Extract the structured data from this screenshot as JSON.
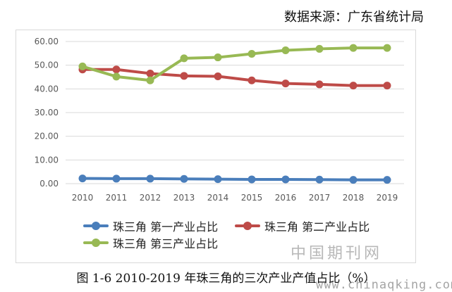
{
  "source_note": "数据来源：广东省统计局",
  "caption": "图 1-6 2010-2019 年珠三角的三次产业产值占比（%）",
  "watermark_cn": "中国期刊网",
  "watermark_url": "www.chinaqking.com",
  "chart_data": {
    "type": "line",
    "categories": [
      "2010",
      "2011",
      "2012",
      "2013",
      "2014",
      "2015",
      "2016",
      "2017",
      "2018",
      "2019"
    ],
    "ylim": [
      0,
      60
    ],
    "yticks": [
      "0.00",
      "10.00",
      "20.00",
      "30.00",
      "40.00",
      "50.00",
      "60.00"
    ],
    "grid": true,
    "legend_position": "bottom",
    "series": [
      {
        "name": "珠三角 第一产业占比",
        "color": "#4a7ebb",
        "values": [
          2.2,
          2.1,
          2.1,
          2.0,
          1.9,
          1.8,
          1.8,
          1.7,
          1.6,
          1.6
        ]
      },
      {
        "name": "珠三角 第二产业占比",
        "color": "#be4b48",
        "values": [
          48.2,
          48.2,
          46.5,
          45.5,
          45.3,
          43.6,
          42.3,
          41.9,
          41.4,
          41.4
        ]
      },
      {
        "name": "珠三角 第三产业占比",
        "color": "#98b954",
        "values": [
          49.5,
          45.2,
          43.6,
          52.9,
          53.3,
          54.8,
          56.3,
          56.9,
          57.3,
          57.3
        ]
      }
    ]
  }
}
